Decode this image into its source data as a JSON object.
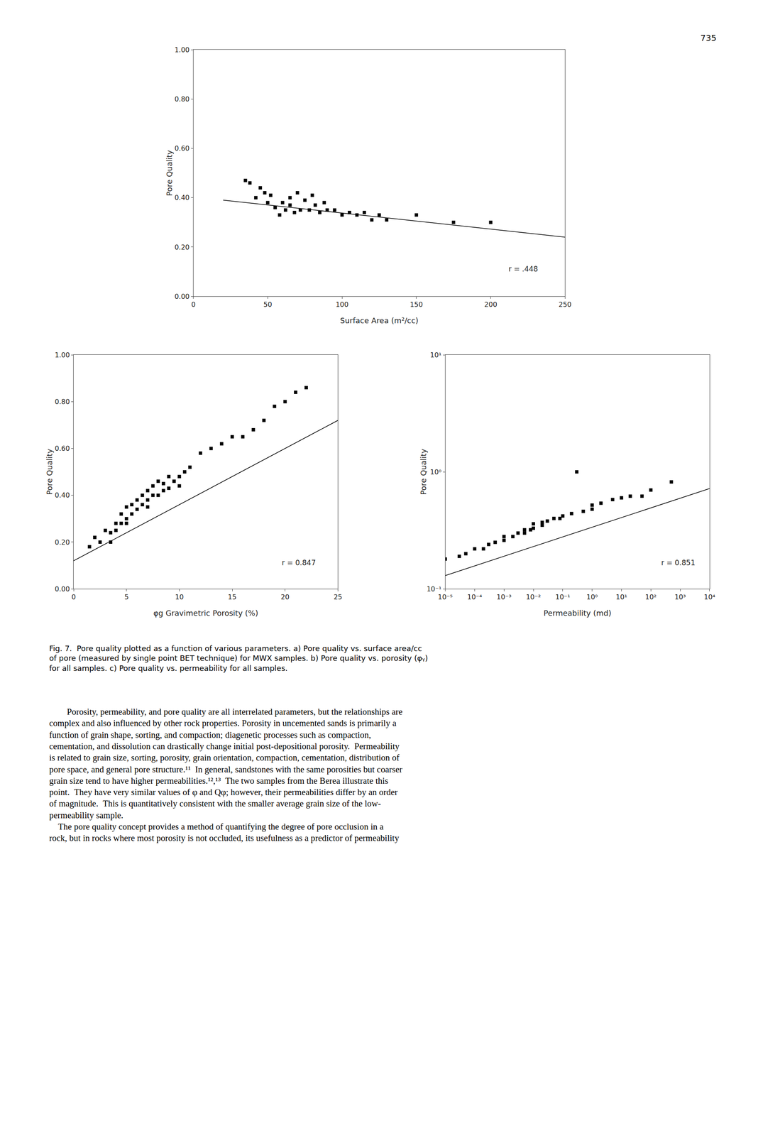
{
  "page_number": "735",
  "caption": [
    "Fig. 7.  Pore quality plotted as a function of various parameters. a) Pore quality vs. surface area/cc",
    "of pore (measured by single point BET technique) for MWX samples. b) Pore quality vs. porosity (φᵧ)",
    "for all samples. c) Pore quality vs. permeability for all samples."
  ],
  "body_text": [
    "        Porosity, permeability, and pore quality are all interrelated parameters, but the relationships are",
    "complex and also influenced by other rock properties. Porosity in uncemented sands is primarily a",
    "function of grain shape, sorting, and compaction; diagenetic processes such as compaction,",
    "cementation, and dissolution can drastically change initial post-depositional porosity.  Permeability",
    "is related to grain size, sorting, porosity, grain orientation, compaction, cementation, distribution of",
    "pore space, and general pore structure.¹¹  In general, sandstones with the same porosities but coarser",
    "grain size tend to have higher permeabilities.¹²,¹³  The two samples from the Berea illustrate this",
    "point.  They have very similar values of φ and Qφ; however, their permeabilities differ by an order",
    "of magnitude.  This is quantitatively consistent with the smaller average grain size of the low-",
    "permeability sample.",
    "    The pore quality concept provides a method of quantifying the degree of pore occlusion in a",
    "rock, but in rocks where most porosity is not occluded, its usefulness as a predictor of permeability"
  ],
  "chart_data": [
    {
      "type": "scatter",
      "xlabel": "Surface Area (m²/cc)",
      "ylabel": "Pore Quality",
      "xlim": [
        0,
        250
      ],
      "ylim": [
        0.0,
        1.0
      ],
      "xticks": [
        0,
        50,
        100,
        150,
        200,
        250
      ],
      "yticks": [
        {
          "value": 0.0,
          "label": "0.00"
        },
        {
          "value": 0.2,
          "label": "0.20"
        },
        {
          "value": 0.4,
          "label": "0.40"
        },
        {
          "value": 0.6,
          "label": "0.60"
        },
        {
          "value": 0.8,
          "label": "0.80"
        },
        {
          "value": 1.0,
          "label": "1.00"
        }
      ],
      "grid": false,
      "annotations": [
        "r = .448"
      ],
      "series": [
        {
          "type": "scatter",
          "marker": "square",
          "color": "black",
          "x": [
            35,
            38,
            42,
            45,
            48,
            50,
            52,
            55,
            58,
            60,
            62,
            65,
            65,
            68,
            70,
            72,
            75,
            78,
            80,
            82,
            85,
            88,
            90,
            95,
            100,
            105,
            110,
            115,
            120,
            125,
            130,
            150,
            175,
            200
          ],
          "values": [
            0.47,
            0.46,
            0.4,
            0.44,
            0.42,
            0.38,
            0.41,
            0.36,
            0.33,
            0.38,
            0.35,
            0.4,
            0.37,
            0.34,
            0.42,
            0.35,
            0.39,
            0.35,
            0.41,
            0.37,
            0.34,
            0.38,
            0.35,
            0.35,
            0.33,
            0.34,
            0.33,
            0.34,
            0.31,
            0.33,
            0.31,
            0.33,
            0.3,
            0.3
          ]
        },
        {
          "type": "line",
          "line_style": "solid",
          "color": "black",
          "x": [
            20,
            250
          ],
          "values": [
            0.39,
            0.24
          ]
        }
      ]
    },
    {
      "type": "scatter",
      "xlabel": "φg Gravimetric Porosity (%)",
      "ylabel": "Pore Quality",
      "xlim": [
        0,
        25
      ],
      "ylim": [
        0.0,
        1.0
      ],
      "xticks": [
        0,
        5,
        10,
        15,
        20,
        25
      ],
      "yticks": [
        {
          "value": 0.0,
          "label": "0.00"
        },
        {
          "value": 0.2,
          "label": "0.20"
        },
        {
          "value": 0.4,
          "label": "0.40"
        },
        {
          "value": 0.6,
          "label": "0.60"
        },
        {
          "value": 0.8,
          "label": "0.80"
        },
        {
          "value": 1.0,
          "label": "1.00"
        }
      ],
      "grid": false,
      "annotations": [
        "r = 0.847"
      ],
      "series": [
        {
          "type": "scatter",
          "marker": "square",
          "color": "black",
          "x": [
            1.5,
            2.0,
            2.5,
            3.0,
            3.5,
            3.5,
            4.0,
            4.0,
            4.5,
            4.5,
            5.0,
            5.0,
            5.0,
            5.5,
            5.5,
            6.0,
            6.0,
            6.5,
            6.5,
            7.0,
            7.0,
            7.0,
            7.5,
            7.5,
            8.0,
            8.0,
            8.5,
            8.5,
            9.0,
            9.0,
            9.5,
            10.0,
            10.0,
            10.5,
            11.0,
            12.0,
            13.0,
            14.0,
            15.0,
            16.0,
            17.0,
            18.0,
            19.0,
            20.0,
            21.0,
            22.0
          ],
          "values": [
            0.18,
            0.22,
            0.2,
            0.25,
            0.24,
            0.2,
            0.28,
            0.25,
            0.32,
            0.28,
            0.35,
            0.3,
            0.28,
            0.36,
            0.32,
            0.38,
            0.34,
            0.4,
            0.36,
            0.42,
            0.38,
            0.35,
            0.44,
            0.4,
            0.46,
            0.4,
            0.45,
            0.42,
            0.48,
            0.43,
            0.46,
            0.48,
            0.44,
            0.5,
            0.52,
            0.58,
            0.6,
            0.62,
            0.65,
            0.65,
            0.68,
            0.72,
            0.78,
            0.8,
            0.84,
            0.86
          ]
        },
        {
          "type": "line",
          "line_style": "solid",
          "color": "black",
          "x": [
            0,
            25
          ],
          "values": [
            0.12,
            0.72
          ]
        }
      ]
    },
    {
      "type": "scatter",
      "xlabel": "Permeability (md)",
      "ylabel": "Pore Quality",
      "log": true,
      "xlim": [
        1e-05,
        10000
      ],
      "ylim": [
        0.1,
        10
      ],
      "xticks": [
        {
          "value": 1e-05,
          "label": "10⁻⁵"
        },
        {
          "value": 0.0001,
          "label": "10⁻⁴"
        },
        {
          "value": 0.001,
          "label": "10⁻³"
        },
        {
          "value": 0.01,
          "label": "10⁻²"
        },
        {
          "value": 0.1,
          "label": "10⁻¹"
        },
        {
          "value": 1,
          "label": "10⁰"
        },
        {
          "value": 10,
          "label": "10¹"
        },
        {
          "value": 100,
          "label": "10²"
        },
        {
          "value": 1000,
          "label": "10³"
        },
        {
          "value": 10000,
          "label": "10⁴"
        }
      ],
      "yticks": [
        {
          "value": 0.1,
          "label": "10⁻¹"
        },
        {
          "value": 1,
          "label": "10⁰"
        },
        {
          "value": 10,
          "label": "10¹"
        }
      ],
      "grid": false,
      "annotations": [
        "r = 0.851"
      ],
      "series": [
        {
          "type": "scatter",
          "marker": "square",
          "color": "black",
          "x": [
            1e-05,
            3e-05,
            5e-05,
            0.0001,
            0.0002,
            0.0003,
            0.0005,
            0.001,
            0.001,
            0.002,
            0.003,
            0.005,
            0.005,
            0.008,
            0.01,
            0.01,
            0.02,
            0.02,
            0.03,
            0.05,
            0.08,
            0.1,
            0.2,
            0.3,
            0.5,
            1.0,
            1.0,
            2.0,
            5.0,
            10.0,
            20.0,
            50.0,
            100.0,
            500.0
          ],
          "values": [
            0.18,
            0.19,
            0.2,
            0.22,
            0.22,
            0.24,
            0.25,
            0.26,
            0.28,
            0.28,
            0.3,
            0.3,
            0.32,
            0.32,
            0.33,
            0.36,
            0.35,
            0.37,
            0.38,
            0.4,
            0.4,
            0.42,
            0.44,
            1.0,
            0.46,
            0.48,
            0.52,
            0.54,
            0.58,
            0.6,
            0.62,
            0.62,
            0.7,
            0.82
          ]
        },
        {
          "type": "line",
          "line_style": "solid",
          "color": "black",
          "x": [
            1e-05,
            10000
          ],
          "values": [
            0.13,
            0.72
          ]
        }
      ]
    }
  ]
}
